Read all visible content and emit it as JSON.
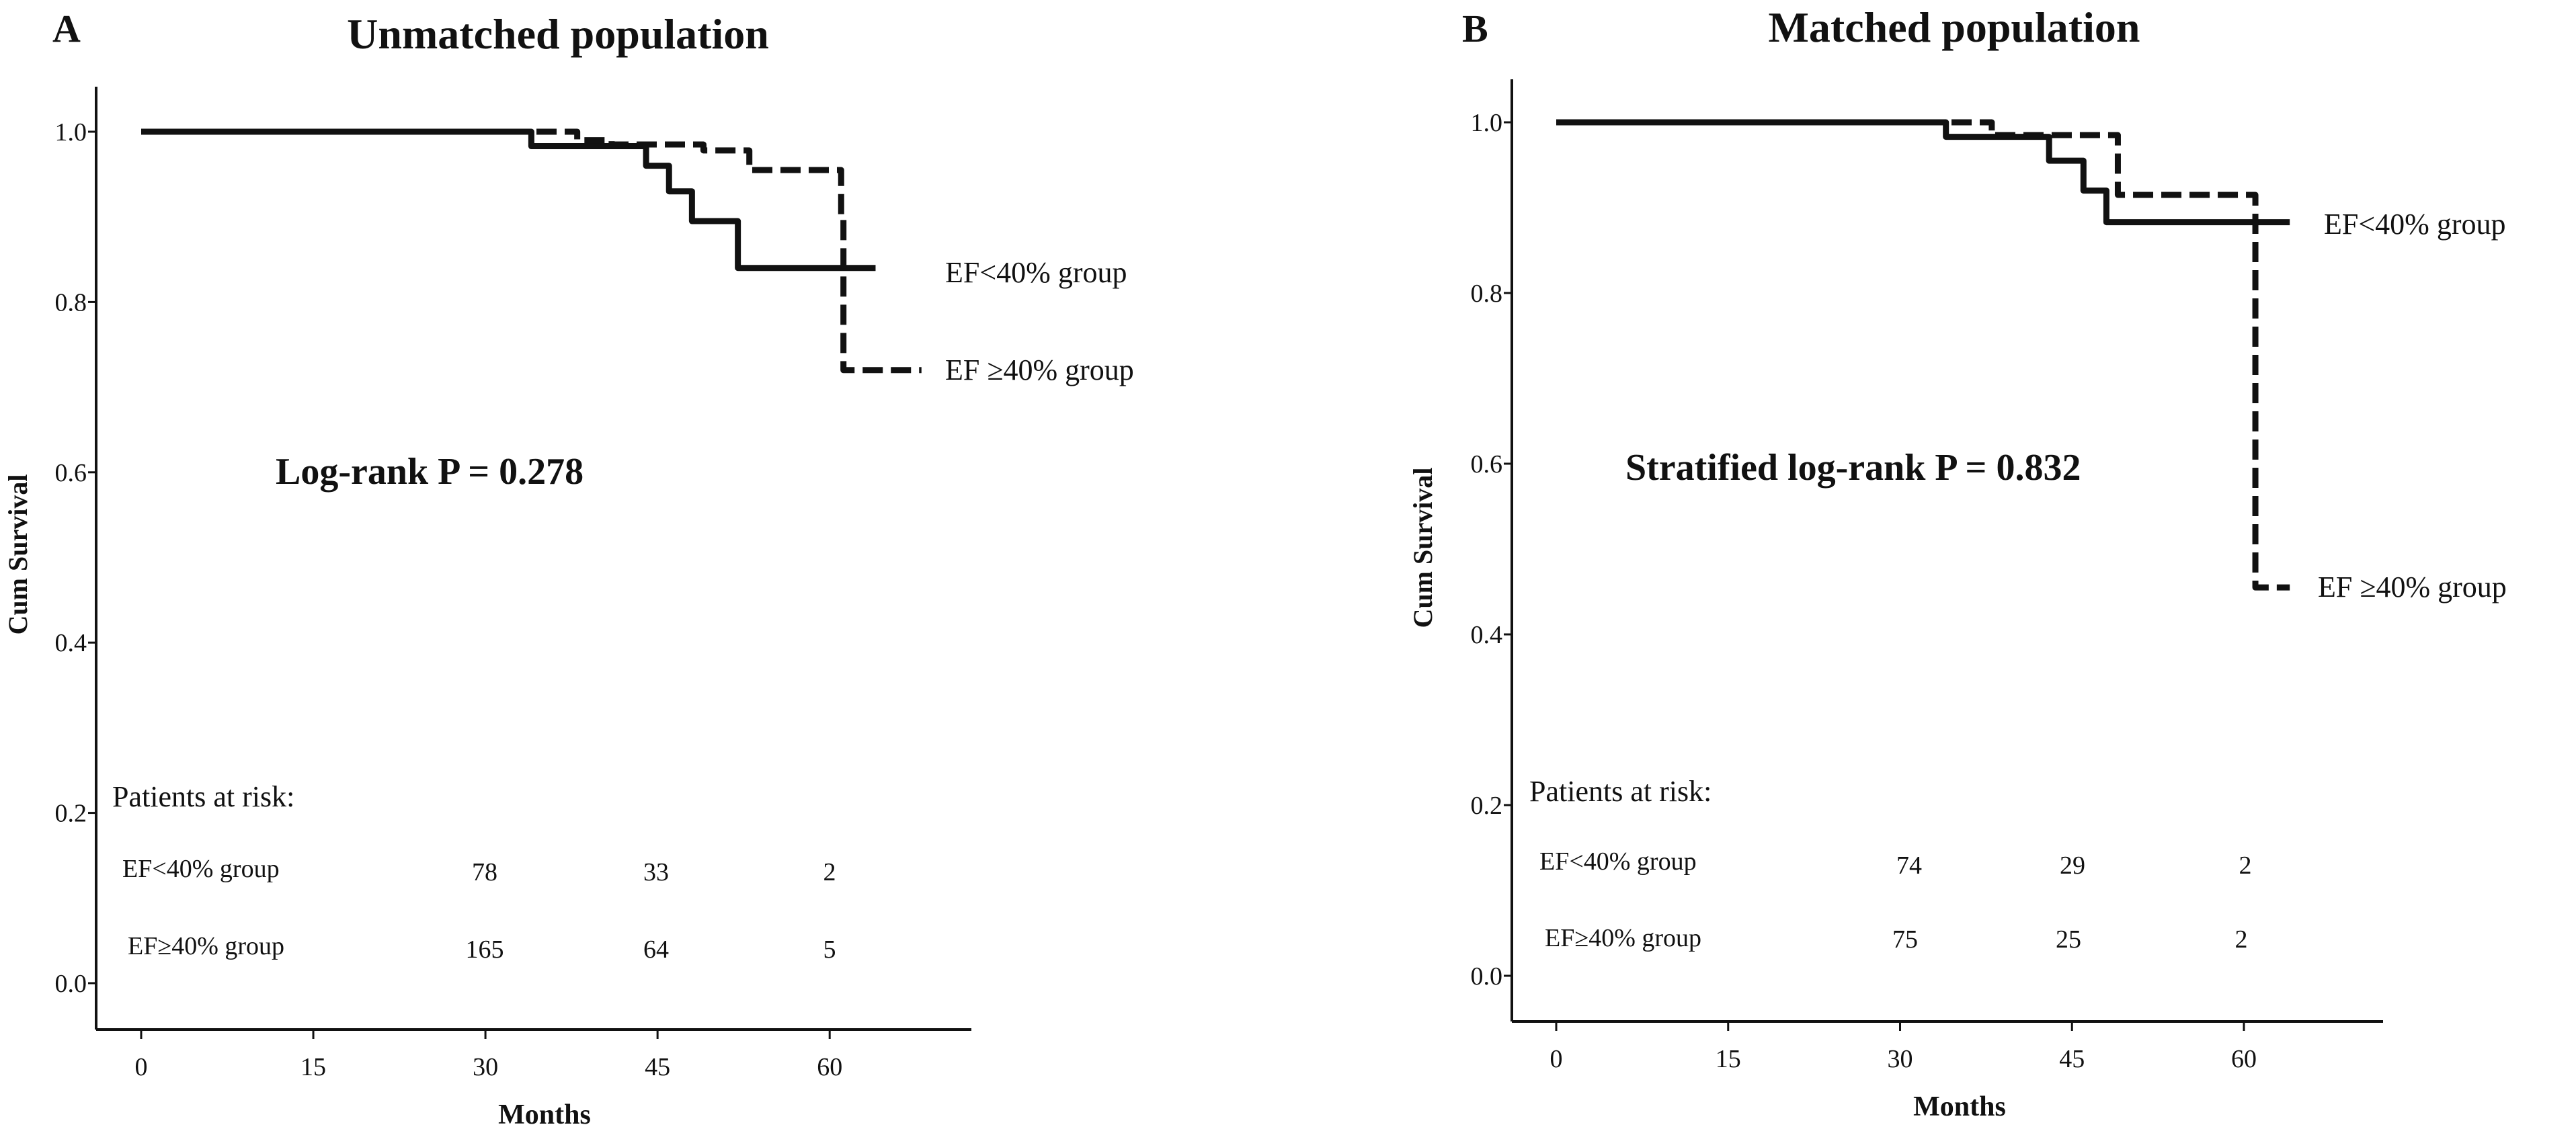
{
  "chart_data": [
    {
      "type": "line",
      "panel_label": "A",
      "title": "Unmatched population",
      "xlabel": "Months",
      "ylabel": "Cum Survival",
      "xticks": [
        0,
        15,
        30,
        45,
        60
      ],
      "yticks": [
        "0.0",
        "0.2",
        "0.4",
        "0.6",
        "0.8",
        "1.0"
      ],
      "xlim": [
        -3,
        73
      ],
      "ylim": [
        -0.05,
        1.05
      ],
      "grid": false,
      "annotation": "Log-rank P = 0.278",
      "series": [
        {
          "name": "EF<40% group",
          "style": "solid",
          "steps": [
            [
              0,
              1.0
            ],
            [
              34,
              0.983
            ],
            [
              44,
              0.96
            ],
            [
              46,
              0.93
            ],
            [
              48,
              0.895
            ],
            [
              52,
              0.84
            ],
            [
              64,
              0.84
            ]
          ]
        },
        {
          "name": "EF ≥40% group",
          "style": "dashed",
          "steps": [
            [
              0,
              1.0
            ],
            [
              38,
              0.99
            ],
            [
              41,
              0.985
            ],
            [
              49,
              0.978
            ],
            [
              53,
              0.955
            ],
            [
              61,
              0.9
            ],
            [
              61.2,
              0.72
            ],
            [
              68,
              0.72
            ]
          ]
        }
      ],
      "risk_table": {
        "title": "Patients at risk:",
        "times": [
          30,
          45,
          60
        ],
        "rows": [
          {
            "label": "EF<40% group",
            "values": [
              "78",
              "33",
              "2"
            ]
          },
          {
            "label": "EF≥40% group",
            "values": [
              "165",
              "64",
              "5"
            ]
          }
        ]
      }
    },
    {
      "type": "line",
      "panel_label": "B",
      "title": "Matched population",
      "xlabel": "Months",
      "ylabel": "Cum Survival",
      "xticks": [
        0,
        15,
        30,
        45,
        60
      ],
      "yticks": [
        "0.0",
        "0.2",
        "0.4",
        "0.6",
        "0.8",
        "1.0"
      ],
      "xlim": [
        -3,
        73
      ],
      "ylim": [
        -0.05,
        1.05
      ],
      "grid": false,
      "annotation": "Stratified log-rank P = 0.832",
      "series": [
        {
          "name": "EF<40% group",
          "style": "solid",
          "steps": [
            [
              0,
              1.0
            ],
            [
              34,
              0.983
            ],
            [
              43,
              0.955
            ],
            [
              46,
              0.92
            ],
            [
              48,
              0.883
            ],
            [
              64,
              0.883
            ]
          ]
        },
        {
          "name": "EF ≥40% group",
          "style": "dashed",
          "steps": [
            [
              0,
              1.0
            ],
            [
              38,
              0.985
            ],
            [
              49,
              0.915
            ],
            [
              61,
              0.455
            ],
            [
              64,
              0.455
            ]
          ]
        }
      ],
      "risk_table": {
        "title": "Patients at risk:",
        "times": [
          30,
          45,
          60
        ],
        "rows": [
          {
            "label": "EF<40% group",
            "values": [
              "74",
              "29",
              "2"
            ]
          },
          {
            "label": "EF≥40% group",
            "values": [
              "75",
              "25",
              "2"
            ]
          }
        ]
      }
    }
  ]
}
